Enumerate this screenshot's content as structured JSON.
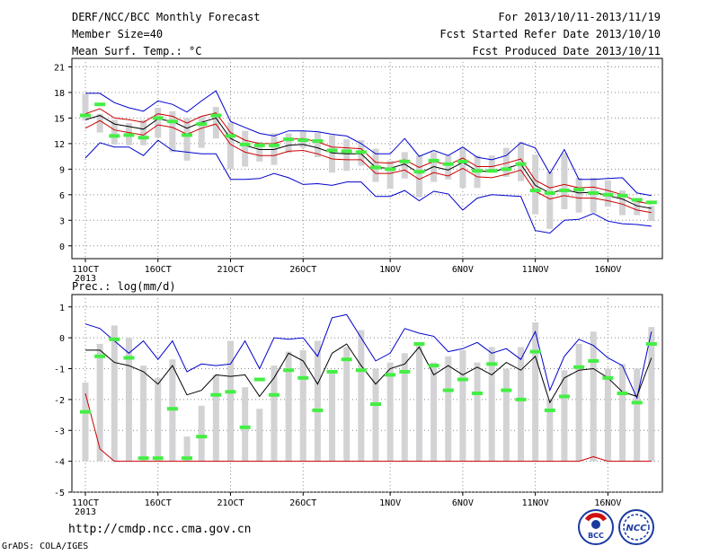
{
  "header": {
    "title": "DERF/NCC/BCC Monthly Forecast",
    "member_size": "Member Size=40",
    "variable": "Mean Surf. Temp.: °C",
    "period": "For 2013/10/11-2013/11/19",
    "fcst_started": "Fcst Started Refer Date 2013/10/10",
    "fcst_produced": "Fcst Produced Date 2013/10/11"
  },
  "prec_label": "Prec.: log(mm/d)",
  "url": "http://cmdp.ncc.cma.gov.cn",
  "credit": "GrADS: COLA/IGES",
  "logos": {
    "left": "BCC",
    "right": "NCC"
  },
  "colors": {
    "box": "#d3d3d6",
    "obs": "#44ee44",
    "envelope": "#0000cc",
    "spread": "#cc0000",
    "mean": "#000000"
  },
  "x_ticks": [
    {
      "label": "11OCT",
      "day": 0,
      "sub": "2013"
    },
    {
      "label": "16OCT",
      "day": 5
    },
    {
      "label": "21OCT",
      "day": 10
    },
    {
      "label": "26OCT",
      "day": 15
    },
    {
      "label": "1NOV",
      "day": 21
    },
    {
      "label": "6NOV",
      "day": 26
    },
    {
      "label": "11NOV",
      "day": 31
    },
    {
      "label": "16NOV",
      "day": 36
    }
  ],
  "chart_data": [
    {
      "type": "line",
      "name": "temperature",
      "ylim": [
        -1.5,
        22
      ],
      "yticks": [
        0,
        3,
        6,
        9,
        12,
        15,
        18,
        21
      ],
      "x": [
        0,
        1,
        2,
        3,
        4,
        5,
        6,
        7,
        8,
        9,
        10,
        11,
        12,
        13,
        14,
        15,
        16,
        17,
        18,
        19,
        20,
        21,
        22,
        23,
        24,
        25,
        26,
        27,
        28,
        29,
        30,
        31,
        32,
        33,
        34,
        35,
        36,
        37,
        38,
        39
      ],
      "series": [
        {
          "role": "box_top",
          "values": [
            17.8,
            15.5,
            14.8,
            14.4,
            14.8,
            16.2,
            15.8,
            15.0,
            15.2,
            16.3,
            14.5,
            13.5,
            12.2,
            13.2,
            13.2,
            13.5,
            13.3,
            13.0,
            12.5,
            12.4,
            11.4,
            10.0,
            11.0,
            10.6,
            11.0,
            10.6,
            11.5,
            10.6,
            10.6,
            11.5,
            12.2,
            10.7,
            8.7,
            10.9,
            8.0,
            8.0,
            7.7,
            6.5,
            5.5,
            4.7
          ]
        },
        {
          "role": "box_bottom",
          "values": [
            14.7,
            13.3,
            11.9,
            11.8,
            11.8,
            12.7,
            11.0,
            10.0,
            11.5,
            12.6,
            9.0,
            9.3,
            9.9,
            9.5,
            10.9,
            11.5,
            10.4,
            8.6,
            8.8,
            9.4,
            7.5,
            6.7,
            7.9,
            5.7,
            7.5,
            7.8,
            6.8,
            6.8,
            8.6,
            8.1,
            7.6,
            3.7,
            2.0,
            4.3,
            3.9,
            3.9,
            4.6,
            3.6,
            3.6,
            2.9
          ]
        },
        {
          "role": "obs",
          "values": [
            15.3,
            16.6,
            12.9,
            13.0,
            12.7,
            15.0,
            14.6,
            13.0,
            14.3,
            15.3,
            12.9,
            11.9,
            11.8,
            11.8,
            12.5,
            12.4,
            12.3,
            11.2,
            11.1,
            11.0,
            9.2,
            9.0,
            9.9,
            8.7,
            10.0,
            9.6,
            9.9,
            8.8,
            8.8,
            9.0,
            9.6,
            6.5,
            6.2,
            6.5,
            6.6,
            6.2,
            6.0,
            5.9,
            5.4,
            5.1
          ]
        },
        {
          "role": "max",
          "values": [
            17.9,
            17.9,
            16.8,
            16.2,
            15.8,
            17.0,
            16.6,
            15.7,
            17.0,
            18.2,
            14.6,
            13.9,
            13.2,
            12.9,
            13.5,
            13.5,
            13.4,
            13.1,
            12.9,
            12.0,
            10.8,
            10.8,
            12.6,
            10.5,
            11.2,
            10.6,
            11.6,
            10.4,
            10.1,
            10.6,
            12.1,
            11.5,
            8.5,
            11.3,
            7.8,
            7.8,
            7.9,
            8.0,
            6.2,
            5.9
          ]
        },
        {
          "role": "spread_upper",
          "values": [
            15.5,
            16.1,
            15.0,
            14.8,
            14.5,
            15.5,
            15.2,
            14.4,
            15.2,
            15.6,
            13.3,
            12.4,
            12.0,
            12.0,
            12.5,
            12.6,
            12.2,
            11.6,
            11.5,
            11.4,
            9.8,
            9.7,
            10.1,
            9.2,
            9.9,
            9.5,
            10.3,
            9.3,
            9.3,
            9.7,
            10.2,
            7.7,
            6.8,
            7.2,
            6.8,
            6.9,
            6.5,
            6.0,
            5.2,
            4.9
          ]
        },
        {
          "role": "mean",
          "values": [
            14.8,
            15.3,
            14.3,
            14.0,
            13.7,
            14.9,
            14.6,
            13.8,
            14.5,
            15.0,
            12.6,
            11.8,
            11.3,
            11.3,
            11.8,
            11.9,
            11.5,
            10.9,
            10.8,
            10.8,
            9.2,
            9.1,
            9.6,
            8.5,
            9.3,
            8.9,
            9.8,
            8.8,
            8.7,
            9.1,
            9.6,
            7.1,
            6.2,
            6.6,
            6.2,
            6.3,
            5.9,
            5.5,
            4.7,
            4.4
          ]
        },
        {
          "role": "spread_lower",
          "values": [
            13.8,
            14.7,
            13.6,
            13.3,
            13.0,
            14.2,
            13.9,
            13.1,
            13.8,
            14.3,
            11.9,
            11.0,
            10.6,
            10.6,
            11.1,
            11.2,
            10.8,
            10.2,
            10.1,
            10.1,
            8.5,
            8.5,
            8.9,
            7.8,
            8.6,
            8.2,
            9.1,
            8.1,
            8.0,
            8.4,
            8.9,
            6.4,
            5.5,
            5.9,
            5.6,
            5.6,
            5.3,
            4.9,
            4.2,
            3.9
          ]
        },
        {
          "role": "min",
          "values": [
            10.3,
            12.1,
            11.6,
            11.6,
            10.6,
            12.4,
            11.2,
            11.0,
            10.8,
            10.8,
            7.8,
            7.8,
            7.9,
            8.5,
            8.0,
            7.2,
            7.3,
            7.1,
            7.5,
            7.5,
            5.8,
            5.8,
            6.5,
            5.3,
            6.4,
            6.1,
            4.2,
            5.6,
            6.0,
            5.9,
            5.8,
            1.8,
            1.5,
            3.0,
            3.1,
            3.8,
            2.9,
            2.6,
            2.5,
            2.3
          ]
        }
      ]
    },
    {
      "type": "line",
      "name": "precipitation",
      "ylim": [
        -5,
        1.4
      ],
      "yticks": [
        -5,
        -4,
        -3,
        -2,
        -1,
        0,
        1
      ],
      "x": [
        0,
        1,
        2,
        3,
        4,
        5,
        6,
        7,
        8,
        9,
        10,
        11,
        12,
        13,
        14,
        15,
        16,
        17,
        18,
        19,
        20,
        21,
        22,
        23,
        24,
        25,
        26,
        27,
        28,
        29,
        30,
        31,
        32,
        33,
        34,
        35,
        36,
        37,
        38,
        39
      ],
      "series": [
        {
          "role": "box_top",
          "values": [
            -1.45,
            -0.2,
            0.4,
            0.0,
            -0.9,
            -1.3,
            -0.7,
            -3.2,
            -2.2,
            -1.2,
            -0.1,
            -1.6,
            -2.3,
            -0.9,
            -0.45,
            -0.4,
            -0.1,
            -1.1,
            -0.3,
            0.25,
            -1.0,
            -0.8,
            -0.5,
            -0.2,
            -0.8,
            -0.6,
            -0.4,
            -0.8,
            -0.3,
            -1.0,
            -0.3,
            0.5,
            -2.0,
            -1.05,
            -0.2,
            0.2,
            -1.0,
            -0.85,
            -1.0,
            0.35
          ]
        },
        {
          "role": "obs",
          "values": [
            -2.4,
            -0.6,
            -0.05,
            -0.65,
            -3.9,
            -3.9,
            -2.3,
            -3.9,
            -3.2,
            -1.85,
            -1.75,
            -2.9,
            -1.35,
            -1.85,
            -1.05,
            -1.3,
            -2.35,
            -1.1,
            -0.7,
            -1.05,
            -2.15,
            -1.2,
            -1.1,
            -0.2,
            -0.9,
            -1.7,
            -1.35,
            -1.8,
            -0.85,
            -1.7,
            -2.0,
            -0.45,
            -2.35,
            -1.9,
            -0.95,
            -0.75,
            -1.3,
            -1.8,
            -2.1,
            -0.2
          ]
        },
        {
          "role": "max",
          "values": [
            0.45,
            0.3,
            -0.1,
            -0.5,
            -0.1,
            -0.7,
            -0.1,
            -1.1,
            -0.85,
            -0.9,
            -0.85,
            -0.1,
            -1.0,
            0.0,
            -0.05,
            0.0,
            -0.6,
            0.65,
            0.75,
            0.0,
            -0.75,
            -0.5,
            0.3,
            0.15,
            0.05,
            -0.45,
            -0.35,
            -0.15,
            -0.5,
            -0.35,
            -0.7,
            0.2,
            -1.7,
            -0.6,
            -0.05,
            -0.25,
            -0.65,
            -0.9,
            -1.95,
            0.2
          ]
        },
        {
          "role": "mean",
          "values": [
            -0.4,
            -0.4,
            -0.8,
            -0.9,
            -1.1,
            -1.5,
            -0.9,
            -1.85,
            -1.7,
            -1.2,
            -1.25,
            -1.2,
            -1.9,
            -1.3,
            -0.5,
            -0.75,
            -1.5,
            -0.5,
            -0.2,
            -0.9,
            -1.5,
            -1.0,
            -0.85,
            -0.3,
            -1.2,
            -0.9,
            -1.2,
            -0.95,
            -1.2,
            -0.8,
            -1.05,
            -0.6,
            -2.1,
            -1.3,
            -1.05,
            -1.0,
            -1.3,
            -1.75,
            -1.9,
            -0.65
          ]
        },
        {
          "role": "spread",
          "values": [
            -1.8,
            -3.6,
            -4.0,
            -4.0,
            -4.0,
            -4.0,
            -4.0,
            -4.0,
            -4.0,
            -4.0,
            -4.0,
            -4.0,
            -4.0,
            -4.0,
            -4.0,
            -4.0,
            -4.0,
            -4.0,
            -4.0,
            -4.0,
            -4.0,
            -4.0,
            -4.0,
            -4.0,
            -4.0,
            -4.0,
            -4.0,
            -4.0,
            -4.0,
            -4.0,
            -4.0,
            -4.0,
            -4.0,
            -4.0,
            -4.0,
            -3.85,
            -4.0,
            -4.0,
            -4.0,
            -4.0
          ]
        }
      ]
    }
  ]
}
